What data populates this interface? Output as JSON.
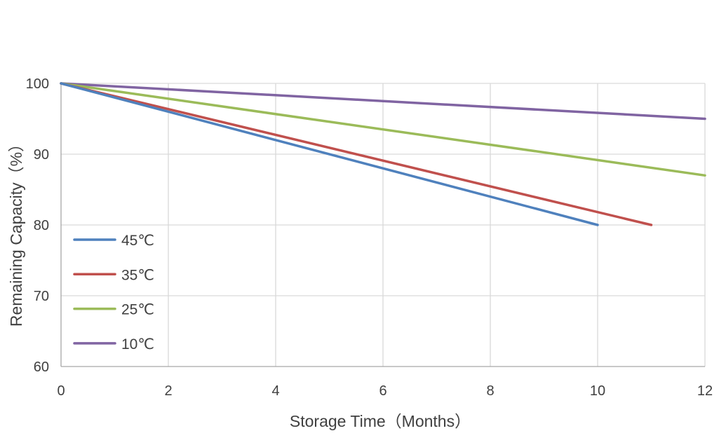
{
  "chart_data": {
    "type": "line",
    "title": "",
    "xlabel": "Storage Time（Months）",
    "ylabel": "Remaining Capacity（%）",
    "xlim": [
      0,
      12
    ],
    "ylim": [
      60,
      100
    ],
    "x_ticks": [
      "0",
      "2",
      "4",
      "6",
      "8",
      "10",
      "12"
    ],
    "y_ticks": [
      "60",
      "70",
      "80",
      "90",
      "100"
    ],
    "grid": true,
    "legend_position": "bottom-left",
    "series": [
      {
        "name": "45℃",
        "color": "#4F81BD",
        "x": [
          0,
          10
        ],
        "y": [
          100,
          80
        ]
      },
      {
        "name": "35℃",
        "color": "#C0504D",
        "x": [
          0,
          11
        ],
        "y": [
          100,
          80
        ]
      },
      {
        "name": "25℃",
        "color": "#9BBB59",
        "x": [
          0,
          12
        ],
        "y": [
          100,
          87
        ]
      },
      {
        "name": "10℃",
        "color": "#8064A2",
        "x": [
          0,
          12
        ],
        "y": [
          100,
          95
        ]
      }
    ]
  }
}
